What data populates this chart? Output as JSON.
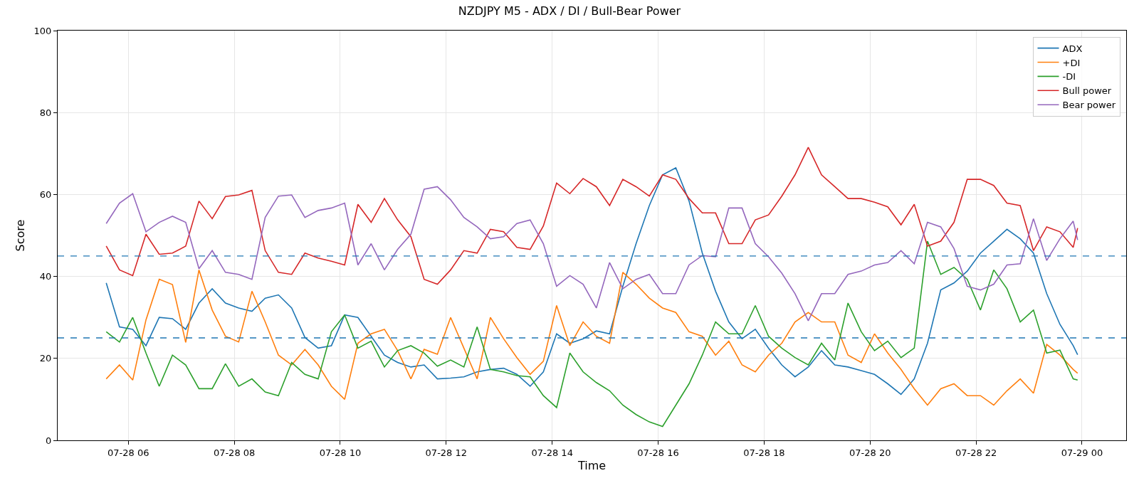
{
  "chart_data": {
    "type": "line",
    "title": "NZDJPY M5 - ADX / DI / Bull-Bear Power",
    "xlabel": "Time",
    "ylabel": "Score",
    "x": [
      "--07-28T05:35",
      "--07-28T05:50",
      "--07-28T06:05",
      "--07-28T06:20",
      "--07-28T06:35",
      "--07-28T06:50",
      "--07-28T07:05",
      "--07-28T07:20",
      "--07-28T07:35",
      "--07-28T07:50",
      "--07-28T08:05",
      "--07-28T08:20",
      "--07-28T08:35",
      "--07-28T08:50",
      "--07-28T09:05",
      "--07-28T09:20",
      "--07-28T09:35",
      "--07-28T09:50",
      "--07-28T10:05",
      "--07-28T10:20",
      "--07-28T10:35",
      "--07-28T10:50",
      "--07-28T11:05",
      "--07-28T11:20",
      "--07-28T11:35",
      "--07-28T11:50",
      "--07-28T12:05",
      "--07-28T12:20",
      "--07-28T12:35",
      "--07-28T12:50",
      "--07-28T13:05",
      "--07-28T13:20",
      "--07-28T13:35",
      "--07-28T13:50",
      "--07-28T14:05",
      "--07-28T14:20",
      "--07-28T14:35",
      "--07-28T14:50",
      "--07-28T15:05",
      "--07-28T15:20",
      "--07-28T15:35",
      "--07-28T15:50",
      "--07-28T16:05",
      "--07-28T16:20",
      "--07-28T16:35",
      "--07-28T16:50",
      "--07-28T17:05",
      "--07-28T17:20",
      "--07-28T17:35",
      "--07-28T17:50",
      "--07-28T18:05",
      "--07-28T18:20",
      "--07-28T18:35",
      "--07-28T18:50",
      "--07-28T19:05",
      "--07-28T19:20",
      "--07-28T19:35",
      "--07-28T19:50",
      "--07-28T20:05",
      "--07-28T20:20",
      "--07-28T20:35",
      "--07-28T20:50",
      "--07-28T21:05",
      "--07-28T21:20",
      "--07-28T21:35",
      "--07-28T21:50",
      "--07-28T22:05",
      "--07-28T22:20",
      "--07-28T22:35",
      "--07-28T22:50",
      "--07-28T23:05",
      "--07-28T23:20",
      "--07-28T23:35",
      "--07-28T23:50",
      "--07-28T23:55"
    ],
    "series": [
      {
        "name": "ADX",
        "color": "#1f77b4",
        "values": [
          38.4,
          27.7,
          27.1,
          23.1,
          30.0,
          29.7,
          27.1,
          33.5,
          37.0,
          33.5,
          32.3,
          31.5,
          34.7,
          35.5,
          32.3,
          25.1,
          22.5,
          23.1,
          30.6,
          30.0,
          25.4,
          20.8,
          19.0,
          17.9,
          18.4,
          15.0,
          15.2,
          15.5,
          16.7,
          17.3,
          17.6,
          16.1,
          13.2,
          16.7,
          26.0,
          23.7,
          24.8,
          26.7,
          26.0,
          37.6,
          48.0,
          57.3,
          64.8,
          66.5,
          58.4,
          45.7,
          36.4,
          28.9,
          24.8,
          27.1,
          22.5,
          18.4,
          15.5,
          17.9,
          21.9,
          18.4,
          17.9,
          17.0,
          16.1,
          13.8,
          11.2,
          15.0,
          23.7,
          36.7,
          38.4,
          41.3,
          45.7,
          48.6,
          51.5,
          49.2,
          45.7,
          35.8,
          28.3,
          23.1,
          20.9
        ]
      },
      {
        "name": "+DI",
        "color": "#ff7f0e",
        "values": [
          15.0,
          18.4,
          14.7,
          29.4,
          39.3,
          38.0,
          23.9,
          41.6,
          31.8,
          25.4,
          24.0,
          36.4,
          28.9,
          20.8,
          18.4,
          22.2,
          18.4,
          13.2,
          10.0,
          23.7,
          26.0,
          27.1,
          21.9,
          15.0,
          22.2,
          21.0,
          30.0,
          22.5,
          15.0,
          30.0,
          24.8,
          20.2,
          16.1,
          19.3,
          32.9,
          23.1,
          28.9,
          25.4,
          23.7,
          41.0,
          38.1,
          34.7,
          32.3,
          31.2,
          26.5,
          25.4,
          20.8,
          24.2,
          18.4,
          16.7,
          20.8,
          23.7,
          28.9,
          31.2,
          28.9,
          28.9,
          20.8,
          19.0,
          26.0,
          21.3,
          17.3,
          12.6,
          8.6,
          12.6,
          13.8,
          10.9,
          10.9,
          8.6,
          12.1,
          15.0,
          11.5,
          23.4,
          20.8,
          17.3,
          16.4
        ]
      },
      {
        "name": "-DI",
        "color": "#2ca02c",
        "values": [
          26.5,
          24.0,
          30.0,
          21.3,
          13.2,
          20.8,
          18.4,
          12.6,
          12.6,
          18.7,
          13.2,
          15.0,
          11.8,
          10.9,
          19.0,
          16.1,
          15.0,
          26.5,
          30.6,
          22.5,
          24.2,
          17.9,
          21.9,
          23.1,
          21.3,
          18.1,
          19.6,
          17.9,
          27.7,
          17.3,
          16.7,
          15.8,
          15.5,
          10.9,
          8.0,
          21.3,
          16.7,
          14.1,
          12.1,
          8.6,
          6.3,
          4.5,
          3.4,
          8.6,
          13.8,
          20.8,
          28.9,
          26.0,
          26.0,
          32.9,
          25.4,
          22.5,
          20.2,
          18.4,
          23.7,
          19.6,
          33.5,
          26.5,
          21.9,
          24.2,
          20.2,
          22.5,
          48.6,
          40.5,
          42.2,
          39.3,
          31.8,
          41.6,
          37.0,
          28.9,
          31.8,
          21.3,
          22.0,
          15.0,
          14.7
        ]
      },
      {
        "name": "Bull power",
        "color": "#d62728",
        "values": [
          47.4,
          41.6,
          40.2,
          50.3,
          45.4,
          45.7,
          47.4,
          58.4,
          54.1,
          59.5,
          59.9,
          61.0,
          46.3,
          41.0,
          40.5,
          45.7,
          44.5,
          43.7,
          42.8,
          57.6,
          53.2,
          59.0,
          53.8,
          49.7,
          39.3,
          38.1,
          41.6,
          46.3,
          45.7,
          51.5,
          50.9,
          47.1,
          46.6,
          52.3,
          62.8,
          60.2,
          63.9,
          61.9,
          57.3,
          63.7,
          61.9,
          59.6,
          64.8,
          63.7,
          59.0,
          55.5,
          55.5,
          48.0,
          48.0,
          53.8,
          55.0,
          59.6,
          64.8,
          71.5,
          64.8,
          61.9,
          59.0,
          59.0,
          58.1,
          57.0,
          52.6,
          57.6,
          47.4,
          48.6,
          53.2,
          63.7,
          63.7,
          62.2,
          57.9,
          57.3,
          46.3,
          52.1,
          50.9,
          47.1,
          51.8
        ]
      },
      {
        "name": "Bear power",
        "color": "#9467bd",
        "values": [
          52.9,
          57.9,
          60.2,
          50.9,
          53.2,
          54.7,
          53.2,
          41.9,
          46.3,
          41.0,
          40.5,
          39.3,
          54.4,
          59.6,
          59.9,
          54.4,
          56.1,
          56.7,
          57.9,
          42.8,
          48.0,
          41.6,
          46.6,
          50.3,
          61.3,
          61.9,
          58.7,
          54.4,
          52.1,
          49.2,
          49.7,
          52.9,
          53.8,
          48.0,
          37.6,
          40.2,
          38.1,
          32.3,
          43.4,
          37.0,
          39.3,
          40.5,
          35.8,
          35.8,
          42.8,
          45.1,
          44.8,
          56.7,
          56.7,
          48.0,
          44.8,
          40.8,
          35.8,
          29.2,
          35.8,
          35.8,
          40.5,
          41.3,
          42.8,
          43.4,
          46.3,
          43.1,
          53.2,
          52.1,
          46.8,
          37.6,
          36.7,
          38.1,
          42.8,
          43.1,
          54.1,
          43.9,
          49.2,
          53.5,
          48.9
        ]
      }
    ],
    "xlim": [
      "--07-28T04:40",
      "--07-29T00:50"
    ],
    "xticks": [
      {
        "value": "--07-28T06:00",
        "label": "07-28 06"
      },
      {
        "value": "--07-28T08:00",
        "label": "07-28 08"
      },
      {
        "value": "--07-28T10:00",
        "label": "07-28 10"
      },
      {
        "value": "--07-28T12:00",
        "label": "07-28 12"
      },
      {
        "value": "--07-28T14:00",
        "label": "07-28 14"
      },
      {
        "value": "--07-28T16:00",
        "label": "07-28 16"
      },
      {
        "value": "--07-28T18:00",
        "label": "07-28 18"
      },
      {
        "value": "--07-28T20:00",
        "label": "07-28 20"
      },
      {
        "value": "--07-28T22:00",
        "label": "07-28 22"
      },
      {
        "value": "--07-29T00:00",
        "label": "07-29 00"
      }
    ],
    "ylim": [
      0,
      100
    ],
    "yticks": [
      0,
      20,
      40,
      60,
      80,
      100
    ],
    "ref_lines": [
      {
        "axis": "y",
        "value": 45,
        "color": "#1f77b4",
        "line_style": "dashed"
      },
      {
        "axis": "y",
        "value": 25,
        "color": "#1f77b4",
        "line_style": "dashed"
      }
    ],
    "grid": true,
    "legend": "top right",
    "line_style": "solid"
  }
}
